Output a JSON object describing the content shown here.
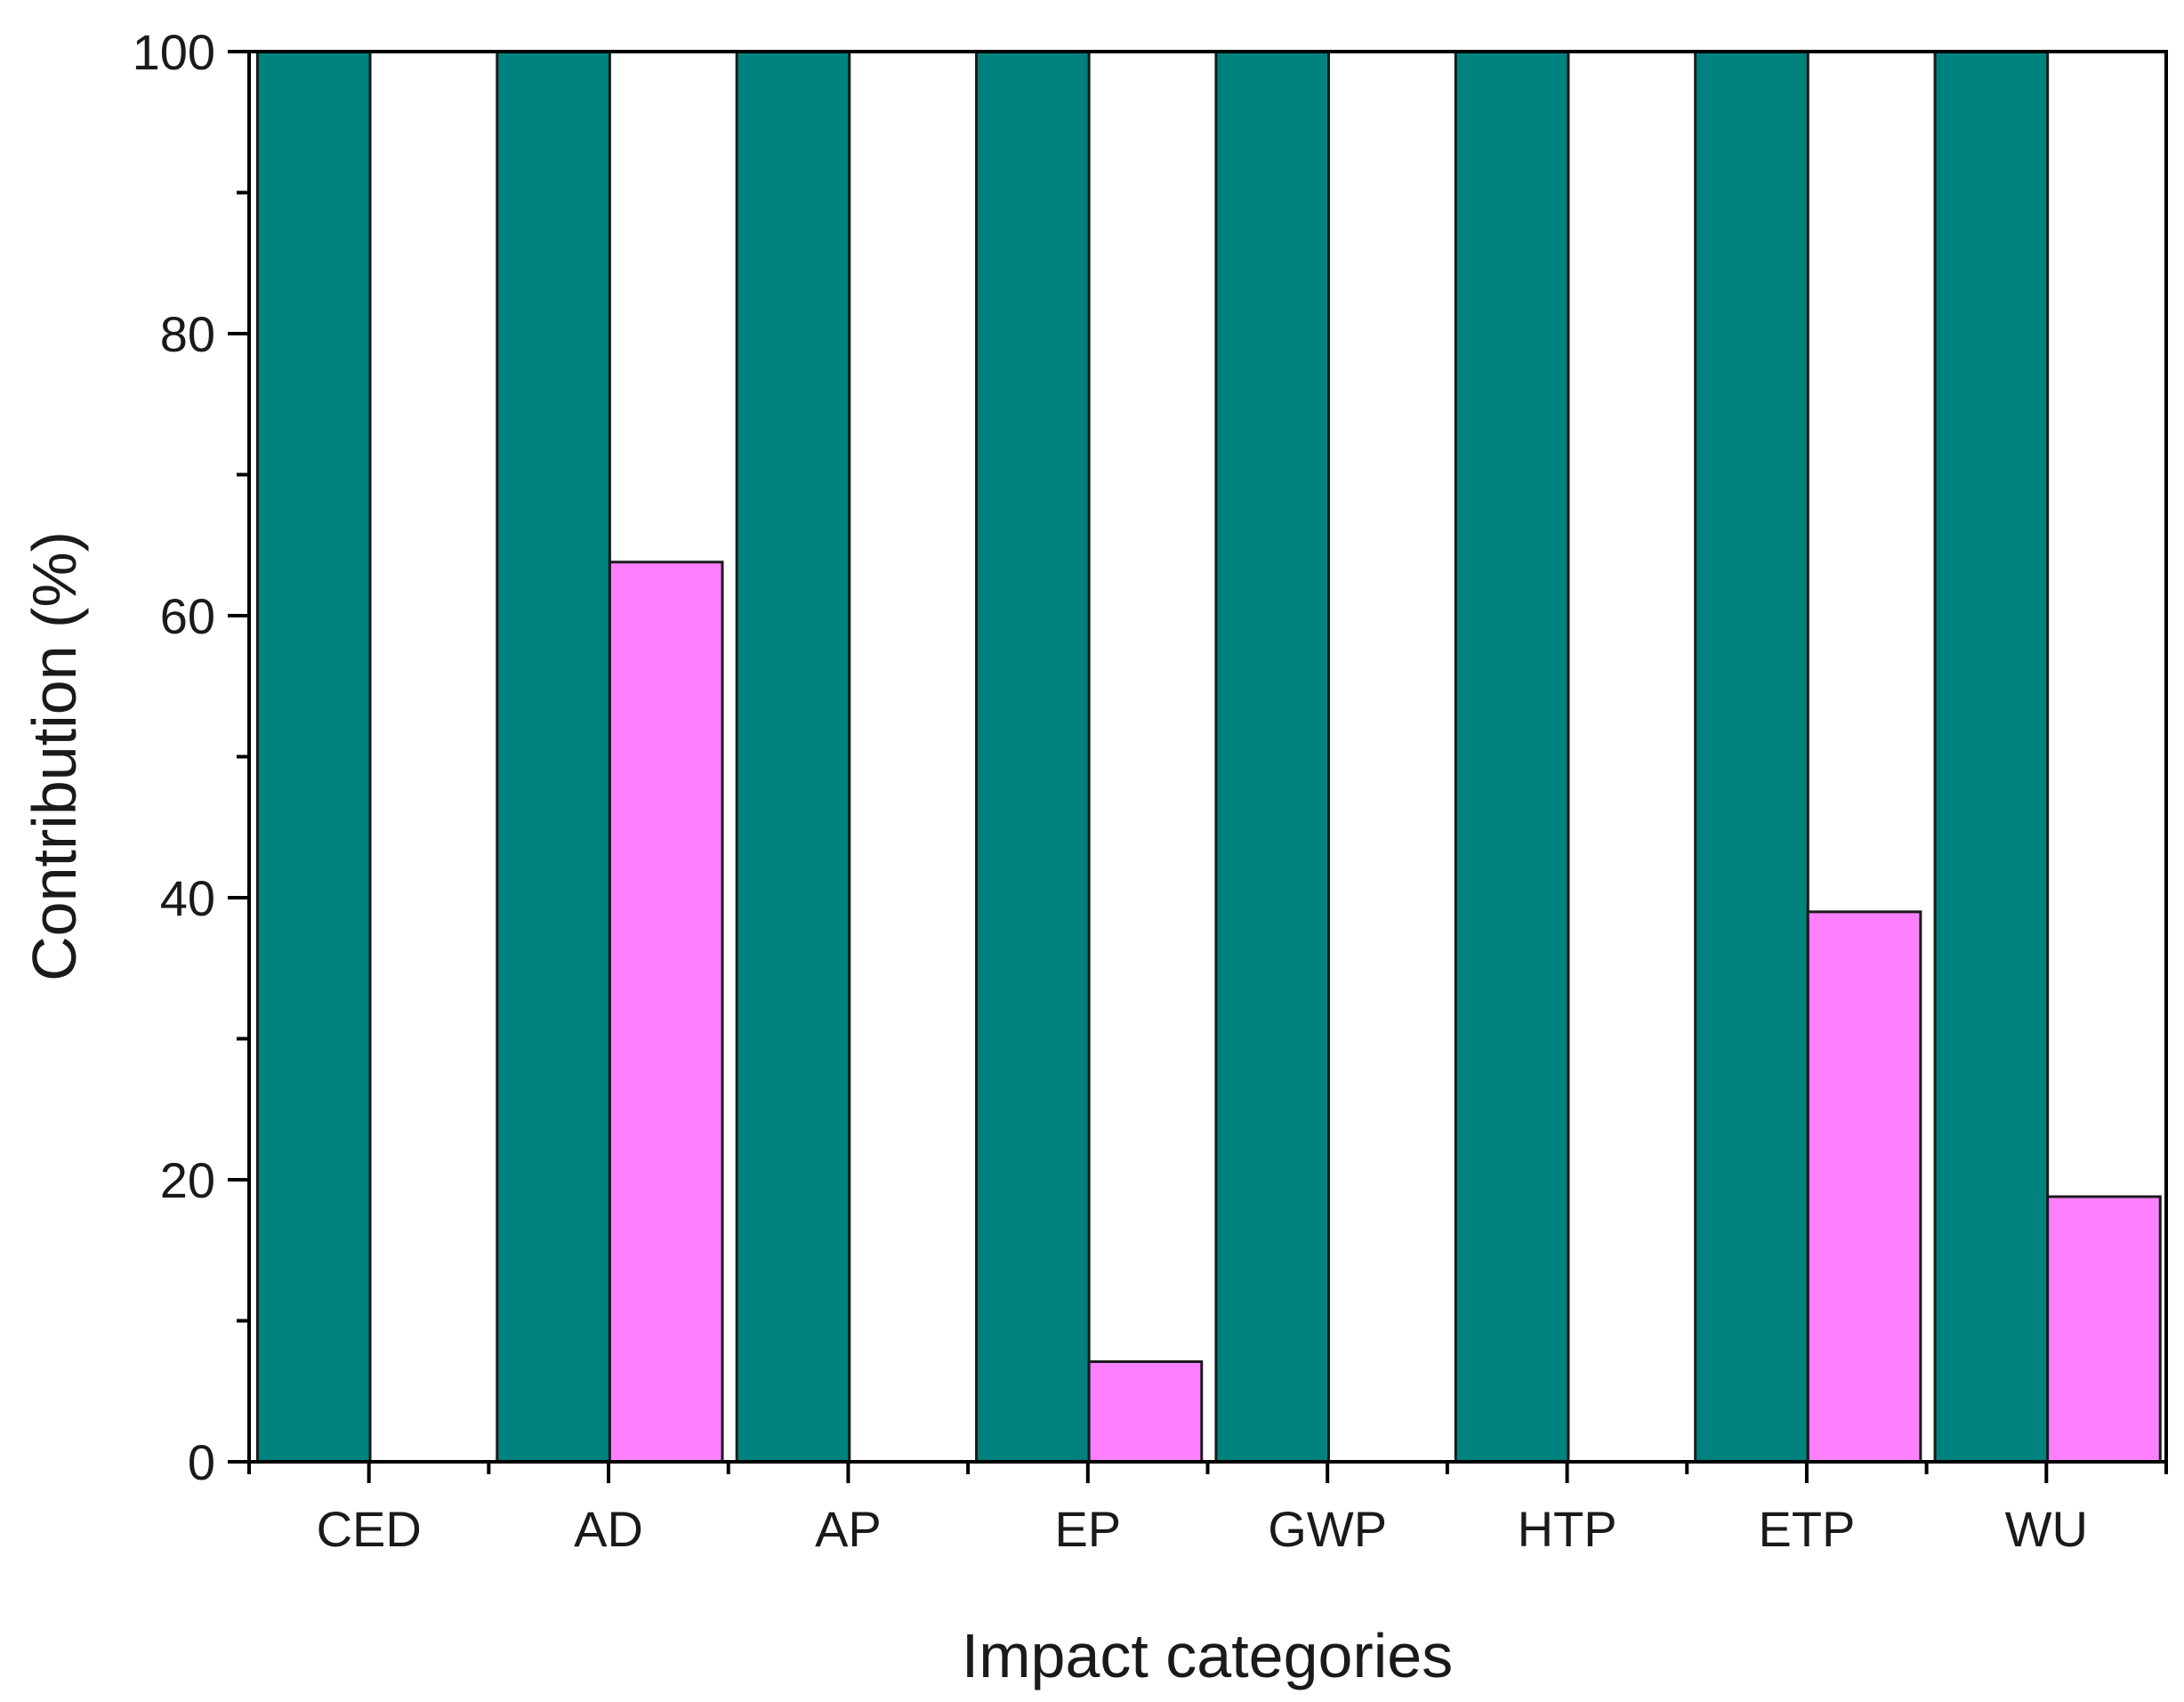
{
  "chart_data": {
    "type": "bar",
    "title": "",
    "xlabel": "Impact categories",
    "ylabel": "Contribution (%)",
    "ylim": [
      0,
      100
    ],
    "yticks": [
      0,
      20,
      40,
      60,
      80,
      100
    ],
    "categories": [
      "CED",
      "AD",
      "AP",
      "EP",
      "GWP",
      "HTP",
      "ETP",
      "WU"
    ],
    "series": [
      {
        "name": "series-1",
        "color": "#00827f",
        "values": [
          100,
          100,
          100,
          100,
          100,
          100,
          100,
          100
        ]
      },
      {
        "name": "series-2",
        "color": "#ff80ff",
        "values": [
          0,
          63.8,
          0,
          7.1,
          0,
          0,
          39,
          18.8
        ]
      }
    ],
    "grid": false,
    "legend": "none"
  }
}
